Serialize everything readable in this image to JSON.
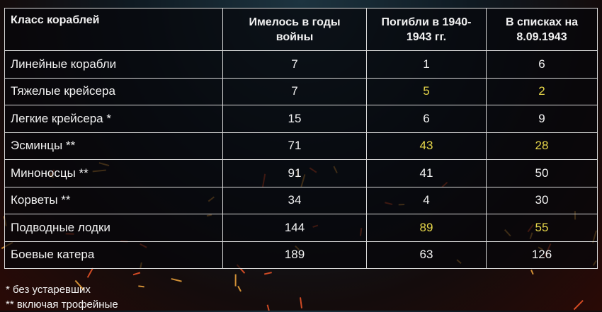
{
  "table": {
    "headers": [
      "Класс кораблей",
      "Имелось в годы войны",
      "Погибли в 1940-1943 гг.",
      "В списках на 8.09.1943"
    ],
    "rows": [
      {
        "class": "Линейные корабли",
        "had": "7",
        "lost": "1",
        "listed": "6",
        "highlight": false
      },
      {
        "class": "Тяжелые  крейсера",
        "had": "7",
        "lost": "5",
        "listed": "2",
        "highlight": true
      },
      {
        "class": "Легкие крейсера *",
        "had": "15",
        "lost": "6",
        "listed": "9",
        "highlight": false
      },
      {
        "class": "Эсминцы **",
        "had": "71",
        "lost": "43",
        "listed": "28",
        "highlight": true
      },
      {
        "class": "Миноносцы **",
        "had": "91",
        "lost": "41",
        "listed": "50",
        "highlight": false
      },
      {
        "class": "Корветы **",
        "had": "34",
        "lost": "4",
        "listed": "30",
        "highlight": false
      },
      {
        "class": "Подводные лодки",
        "had": "144",
        "lost": "89",
        "listed": "55",
        "highlight": true
      },
      {
        "class": "Боевые катера",
        "had": "189",
        "lost": "63",
        "listed": "126",
        "highlight": false
      }
    ]
  },
  "footnotes": [
    "* без устаревших",
    "** включая трофейные"
  ],
  "colors": {
    "highlight": "#e6d64a",
    "text": "#f2f2f2",
    "border": "#d8d8d8"
  }
}
